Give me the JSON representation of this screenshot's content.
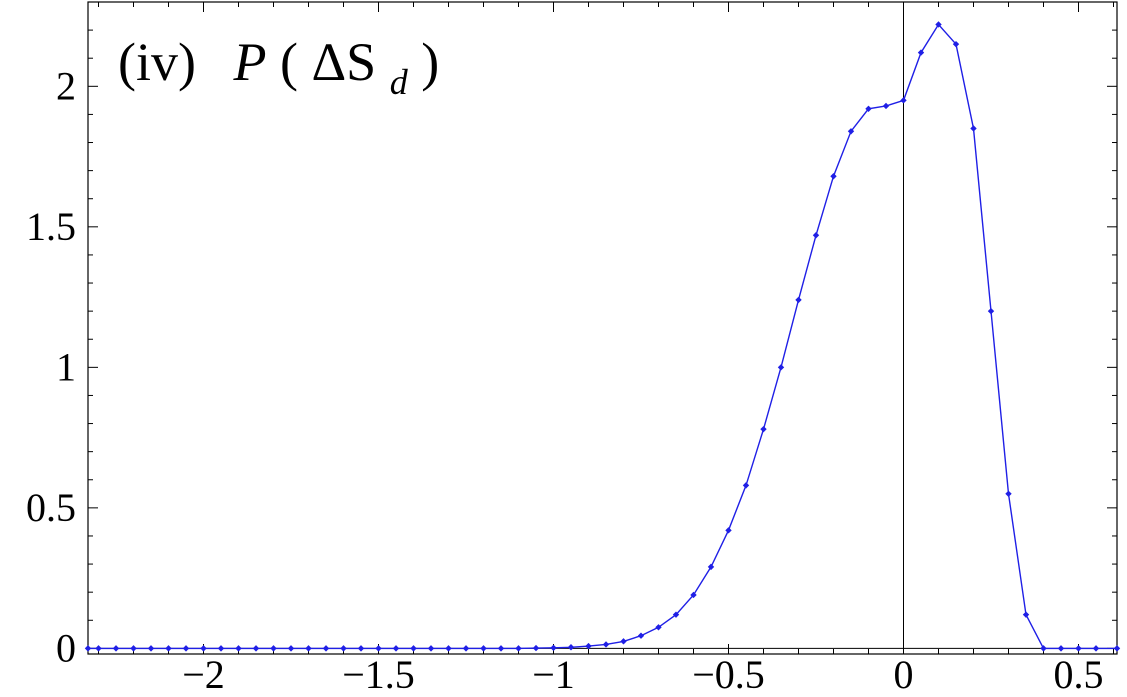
{
  "chart_data": {
    "type": "line",
    "title_label": "(iv)",
    "title_func": "P",
    "title_open": "(",
    "title_delta": "ΔS",
    "title_sub": "d",
    "title_close": ")",
    "xlabel": "",
    "ylabel": "",
    "xlim": [
      -2.33,
      0.61
    ],
    "ylim": [
      -0.02,
      2.3
    ],
    "xticks": [
      -2,
      -1.5,
      -1,
      -0.5,
      0,
      0.5
    ],
    "xtick_labels": [
      "−2",
      "−1.5",
      "−1",
      "−0.5",
      "0",
      "0.5"
    ],
    "yticks": [
      0,
      0.5,
      1,
      1.5,
      2
    ],
    "ytick_labels": [
      "0",
      "0.5",
      "1",
      "1.5",
      "2"
    ],
    "grid": false,
    "series": [
      {
        "color": "#1f1fe6",
        "marker": "diamond",
        "x": [
          -2.33,
          -2.3,
          -2.25,
          -2.2,
          -2.15,
          -2.1,
          -2.05,
          -2.0,
          -1.95,
          -1.9,
          -1.85,
          -1.8,
          -1.75,
          -1.7,
          -1.65,
          -1.6,
          -1.55,
          -1.5,
          -1.45,
          -1.4,
          -1.35,
          -1.3,
          -1.25,
          -1.2,
          -1.15,
          -1.1,
          -1.05,
          -1.0,
          -0.95,
          -0.9,
          -0.85,
          -0.8,
          -0.75,
          -0.7,
          -0.65,
          -0.6,
          -0.55,
          -0.5,
          -0.45,
          -0.4,
          -0.35,
          -0.3,
          -0.25,
          -0.2,
          -0.15,
          -0.1,
          -0.05,
          0.0,
          0.05,
          0.1,
          0.15,
          0.2,
          0.25,
          0.3,
          0.35,
          0.4,
          0.45,
          0.5,
          0.55,
          0.61
        ],
        "y": [
          0,
          0,
          0,
          0,
          0,
          0,
          0,
          0,
          0,
          0,
          0,
          0,
          0,
          0,
          0,
          0,
          0,
          0,
          0,
          0,
          0,
          0,
          0,
          0,
          0,
          0,
          0.001,
          0.002,
          0.004,
          0.008,
          0.014,
          0.025,
          0.045,
          0.075,
          0.12,
          0.19,
          0.29,
          0.42,
          0.58,
          0.78,
          1.0,
          1.24,
          1.47,
          1.68,
          1.84,
          1.92,
          1.93,
          1.95,
          2.12,
          2.22,
          2.15,
          1.85,
          1.2,
          0.55,
          0.12,
          0.0,
          0,
          0,
          0,
          0
        ]
      }
    ]
  }
}
